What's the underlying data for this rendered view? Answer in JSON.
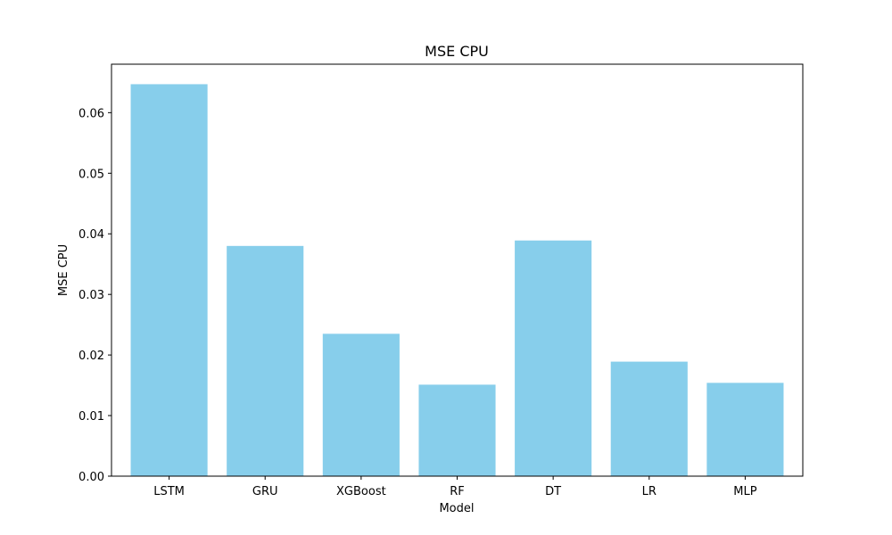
{
  "chart_data": {
    "type": "bar",
    "title": "MSE CPU",
    "xlabel": "Model",
    "ylabel": "MSE CPU",
    "categories": [
      "LSTM",
      "GRU",
      "XGBoost",
      "RF",
      "DT",
      "LR",
      "MLP"
    ],
    "values": [
      0.0647,
      0.038,
      0.0235,
      0.0151,
      0.0389,
      0.0189,
      0.0154
    ],
    "ylim": [
      0,
      0.068
    ],
    "yticks": [
      0.0,
      0.01,
      0.02,
      0.03,
      0.04,
      0.05,
      0.06
    ],
    "ytick_labels": [
      "0.00",
      "0.01",
      "0.02",
      "0.03",
      "0.04",
      "0.05",
      "0.06"
    ],
    "bar_color": "#87ceeb",
    "grid": false,
    "legend": "none"
  }
}
